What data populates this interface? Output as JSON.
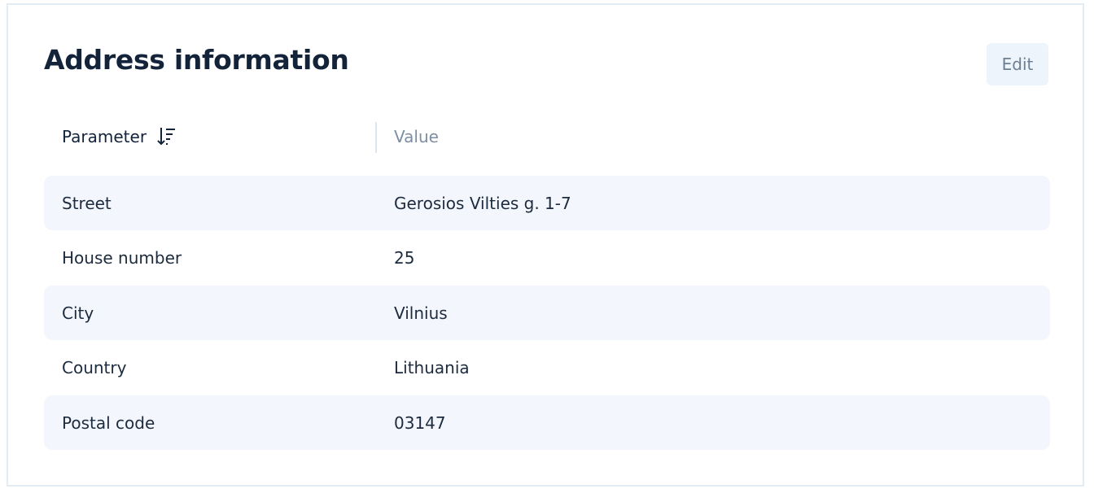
{
  "header": {
    "title": "Address information",
    "edit": "Edit"
  },
  "table": {
    "columns": [
      "Parameter",
      "Value"
    ],
    "rows": [
      [
        "Street",
        "Gerosios Vilties g. 1-7"
      ],
      [
        "House number",
        "25"
      ],
      [
        "City",
        "Vilnius"
      ],
      [
        "Country",
        "Lithuania"
      ],
      [
        "Postal code",
        "03147"
      ]
    ]
  }
}
